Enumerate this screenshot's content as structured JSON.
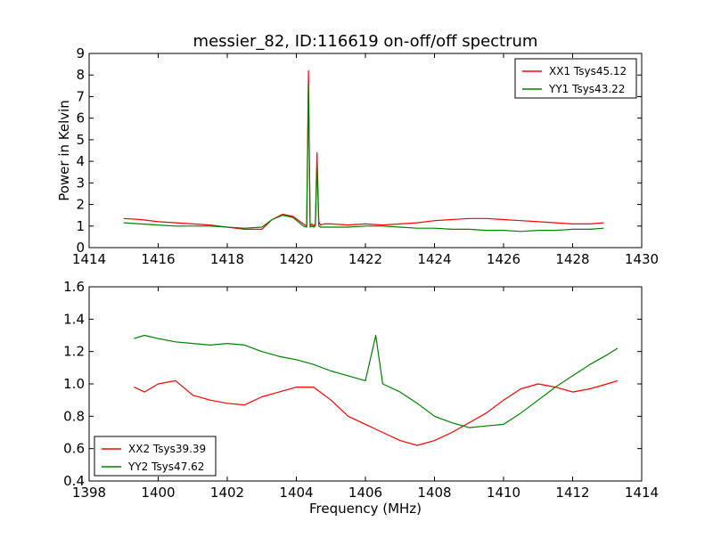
{
  "figure": {
    "title": "messier_82, ID:116619 on-off/off spectrum"
  },
  "chart_data": [
    {
      "type": "line",
      "title": "messier_82, ID:116619 on-off/off spectrum",
      "xlabel": "",
      "ylabel": "Power in Kelvin",
      "xlim": [
        1414,
        1430
      ],
      "ylim": [
        0,
        9
      ],
      "xticks": [
        "1414",
        "1416",
        "1418",
        "1420",
        "1422",
        "1424",
        "1426",
        "1428",
        "1430"
      ],
      "yticks": [
        "0",
        "1",
        "2",
        "3",
        "4",
        "5",
        "6",
        "7",
        "8",
        "9"
      ],
      "grid": false,
      "legend_position": "top-right",
      "series": [
        {
          "name": "XX1 Tsys45.12",
          "color": "#ff0000",
          "x": [
            1415.0,
            1415.5,
            1416.0,
            1416.5,
            1417.0,
            1417.5,
            1418.0,
            1418.5,
            1419.0,
            1419.3,
            1419.6,
            1419.9,
            1420.2,
            1420.3,
            1420.35,
            1420.4,
            1420.45,
            1420.5,
            1420.55,
            1420.6,
            1420.65,
            1420.7,
            1420.8,
            1421.0,
            1421.5,
            1422.0,
            1422.5,
            1423.0,
            1423.5,
            1424.0,
            1424.5,
            1425.0,
            1425.5,
            1426.0,
            1426.5,
            1427.0,
            1427.5,
            1428.0,
            1428.5,
            1428.9
          ],
          "y": [
            1.35,
            1.3,
            1.2,
            1.15,
            1.1,
            1.05,
            0.95,
            0.85,
            0.85,
            1.3,
            1.55,
            1.45,
            1.1,
            1.0,
            8.2,
            1.0,
            1.1,
            1.0,
            1.1,
            4.4,
            1.2,
            1.05,
            1.1,
            1.1,
            1.05,
            1.1,
            1.05,
            1.1,
            1.15,
            1.25,
            1.3,
            1.35,
            1.35,
            1.3,
            1.25,
            1.2,
            1.15,
            1.1,
            1.1,
            1.15
          ]
        },
        {
          "name": "YY1 Tsys43.22",
          "color": "#008000",
          "x": [
            1415.0,
            1415.5,
            1416.0,
            1416.5,
            1417.0,
            1417.5,
            1418.0,
            1418.5,
            1419.0,
            1419.3,
            1419.6,
            1419.9,
            1420.2,
            1420.3,
            1420.35,
            1420.4,
            1420.45,
            1420.5,
            1420.55,
            1420.6,
            1420.65,
            1420.7,
            1420.8,
            1421.0,
            1421.5,
            1422.0,
            1422.5,
            1423.0,
            1423.5,
            1424.0,
            1424.5,
            1425.0,
            1425.5,
            1426.0,
            1426.5,
            1427.0,
            1427.5,
            1428.0,
            1428.5,
            1428.9
          ],
          "y": [
            1.15,
            1.1,
            1.05,
            1.0,
            1.0,
            1.0,
            0.95,
            0.9,
            0.95,
            1.3,
            1.5,
            1.4,
            1.0,
            0.95,
            7.6,
            0.95,
            1.0,
            0.95,
            1.0,
            3.9,
            1.0,
            0.95,
            0.95,
            0.95,
            0.95,
            1.0,
            1.0,
            0.95,
            0.9,
            0.9,
            0.85,
            0.85,
            0.8,
            0.8,
            0.75,
            0.8,
            0.8,
            0.85,
            0.85,
            0.9
          ]
        }
      ]
    },
    {
      "type": "line",
      "title": "",
      "xlabel": "Frequency (MHz)",
      "ylabel": "",
      "xlim": [
        1398,
        1414
      ],
      "ylim": [
        0.4,
        1.6
      ],
      "xticks": [
        "1398",
        "1400",
        "1402",
        "1404",
        "1406",
        "1408",
        "1410",
        "1412",
        "1414"
      ],
      "yticks": [
        "0.4",
        "0.6",
        "0.8",
        "1.0",
        "1.2",
        "1.4",
        "1.6"
      ],
      "grid": false,
      "legend_position": "bottom-left",
      "series": [
        {
          "name": "XX2 Tsys39.39",
          "color": "#ff0000",
          "x": [
            1399.3,
            1399.6,
            1400.0,
            1400.5,
            1401.0,
            1401.5,
            1402.0,
            1402.5,
            1403.0,
            1403.5,
            1404.0,
            1404.5,
            1405.0,
            1405.5,
            1406.0,
            1406.5,
            1407.0,
            1407.5,
            1408.0,
            1408.5,
            1409.0,
            1409.5,
            1410.0,
            1410.5,
            1411.0,
            1411.5,
            1412.0,
            1412.5,
            1413.0,
            1413.3
          ],
          "y": [
            0.98,
            0.95,
            1.0,
            1.02,
            0.93,
            0.9,
            0.88,
            0.87,
            0.92,
            0.95,
            0.98,
            0.98,
            0.9,
            0.8,
            0.75,
            0.7,
            0.65,
            0.62,
            0.65,
            0.7,
            0.76,
            0.82,
            0.9,
            0.97,
            1.0,
            0.98,
            0.95,
            0.97,
            1.0,
            1.02
          ]
        },
        {
          "name": "YY2 Tsys47.62",
          "color": "#008000",
          "x": [
            1399.3,
            1399.6,
            1400.0,
            1400.5,
            1401.0,
            1401.5,
            1402.0,
            1402.5,
            1403.0,
            1403.5,
            1404.0,
            1404.5,
            1405.0,
            1405.5,
            1406.0,
            1406.3,
            1406.5,
            1407.0,
            1407.5,
            1408.0,
            1408.5,
            1409.0,
            1409.5,
            1410.0,
            1410.5,
            1411.0,
            1411.5,
            1412.0,
            1412.5,
            1413.0,
            1413.3
          ],
          "y": [
            1.28,
            1.3,
            1.28,
            1.26,
            1.25,
            1.24,
            1.25,
            1.24,
            1.2,
            1.17,
            1.15,
            1.12,
            1.08,
            1.05,
            1.02,
            1.3,
            1.0,
            0.95,
            0.88,
            0.8,
            0.76,
            0.73,
            0.74,
            0.75,
            0.82,
            0.9,
            0.98,
            1.05,
            1.12,
            1.18,
            1.22
          ]
        }
      ]
    }
  ]
}
